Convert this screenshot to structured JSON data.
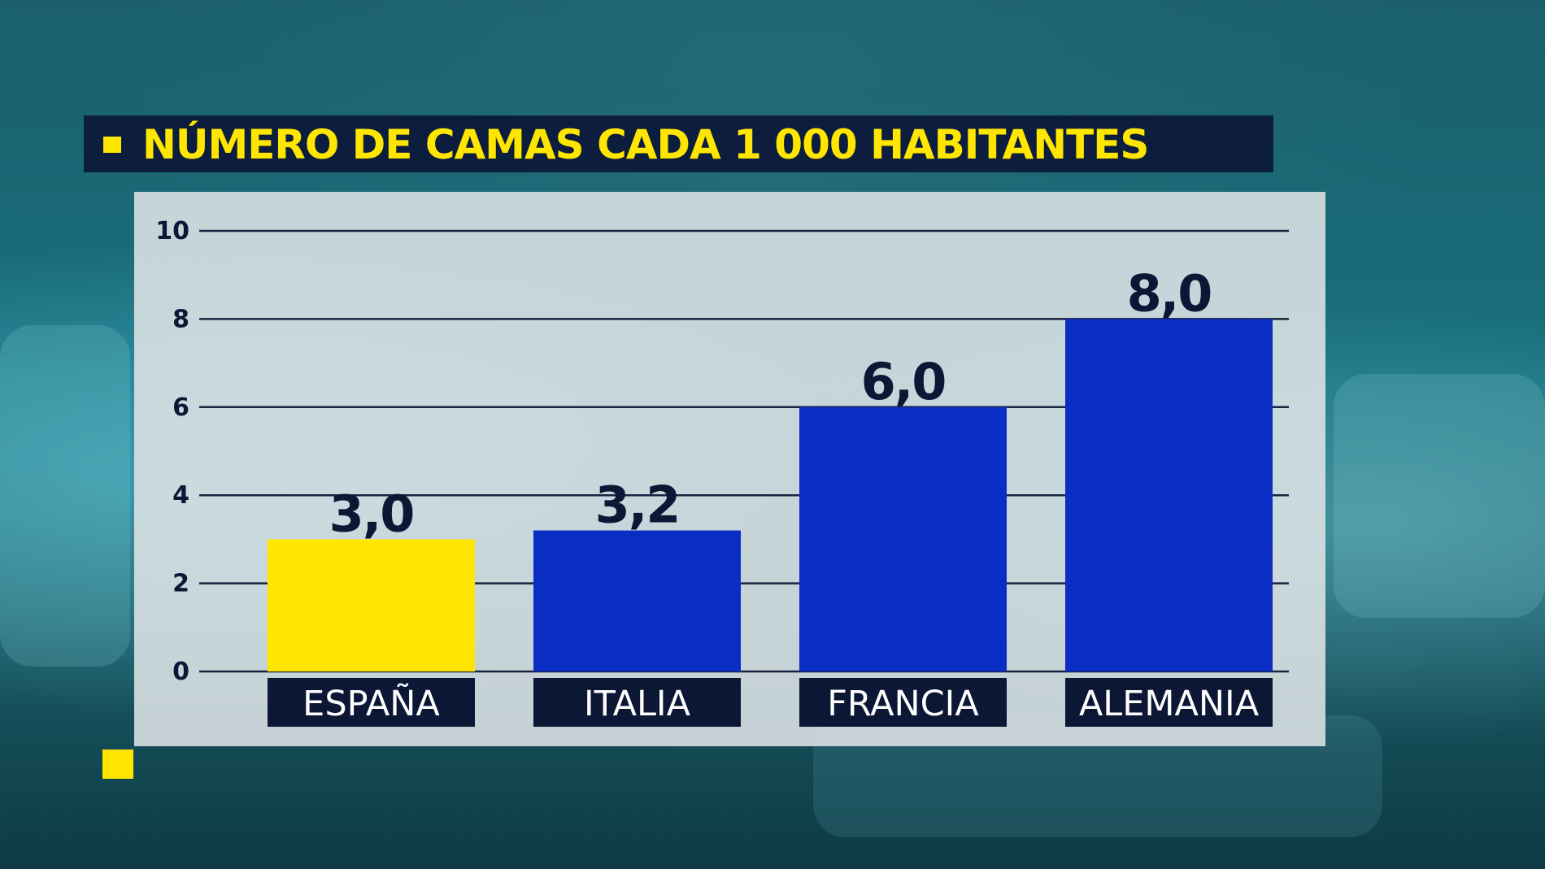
{
  "title": "NÚMERO DE CAMAS CADA 1 000 HABITANTES",
  "colors": {
    "title_text": "#ffe600",
    "title_bar": "#0c1d3e",
    "highlight_bar": "#ffe600",
    "bar": "#0a2ec4",
    "label_box": "#0c1736"
  },
  "chart_data": {
    "type": "bar",
    "title": "NÚMERO DE CAMAS CADA 1 000 HABITANTES",
    "categories": [
      "ESPAÑA",
      "ITALIA",
      "FRANCIA",
      "ALEMANIA"
    ],
    "values": [
      3.0,
      3.2,
      6.0,
      8.0
    ],
    "value_labels": [
      "3,0",
      "3,2",
      "6,0",
      "8,0"
    ],
    "highlight_category": "ESPAÑA",
    "yticks": [
      0,
      2,
      4,
      6,
      8,
      10
    ],
    "ylim": [
      0,
      10
    ],
    "xlabel": "",
    "ylabel": "",
    "grid": true,
    "legend": "none"
  }
}
